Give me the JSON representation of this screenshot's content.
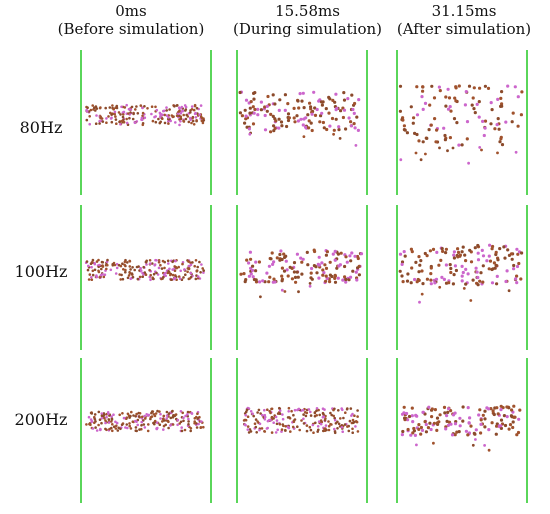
{
  "columns": [
    {
      "time": "0ms",
      "phase": "(Before simulation)"
    },
    {
      "time": "15.58ms",
      "phase": "(During simulation)"
    },
    {
      "time": "31.15ms",
      "phase": "(After simulation)"
    }
  ],
  "rows": [
    {
      "label": "80Hz"
    },
    {
      "label": "100Hz"
    },
    {
      "label": "200Hz"
    }
  ],
  "colors": {
    "wall": "#5ad65a",
    "particle_a": "#8b4a2b",
    "particle_b": "#cc66cc",
    "particle_c": "#a0522d"
  }
}
